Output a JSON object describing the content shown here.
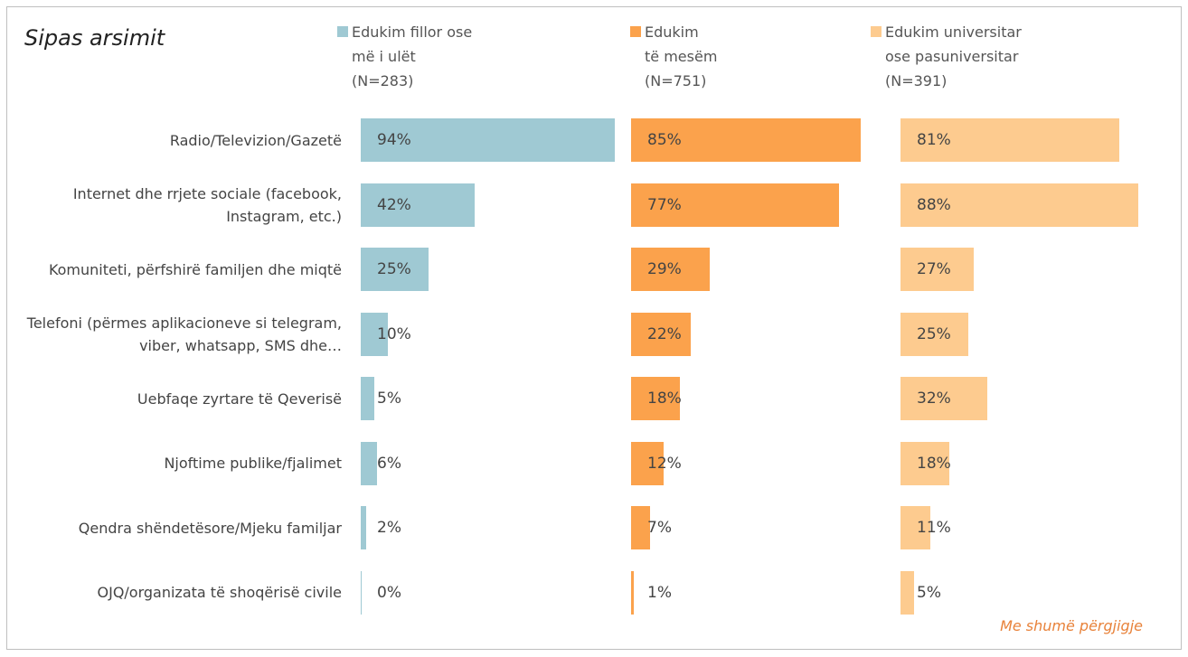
{
  "chart_data": {
    "type": "bar",
    "orientation": "horizontal",
    "title": "Sipas arsimit",
    "note": "Me shumë përgjigje",
    "xlim": [
      0,
      100
    ],
    "categories": [
      "Radio/Televizion/Gazetë",
      "Internet dhe rrjete sociale (facebook, Instagram, etc.)",
      "Komuniteti, përfshirë familjen dhe miqtë",
      "Telefoni (përmes aplikacioneve si telegram, viber, whatsapp, SMS dhe…",
      "Uebfaqe zyrtare të Qeverisë",
      "Njoftime publike/fjalimet",
      "Qendra shëndetësore/Mjeku familjar",
      "OJQ/organizata të shoqërisë civile"
    ],
    "series": [
      {
        "name": "Edukim fillor ose\nmë i ulët\n(N=283)",
        "color": "#9fc9d3",
        "values": [
          94,
          42,
          25,
          10,
          5,
          6,
          2,
          0
        ],
        "value_labels": [
          "94%",
          "42%",
          "25%",
          "10%",
          "5%",
          "6%",
          "2%",
          "0%"
        ]
      },
      {
        "name": "Edukim\ntë mesëm\n(N=751)",
        "color": "#fba24c",
        "values": [
          85,
          77,
          29,
          22,
          18,
          12,
          7,
          1
        ],
        "value_labels": [
          "85%",
          "77%",
          "29%",
          "22%",
          "18%",
          "12%",
          "7%",
          "1%"
        ]
      },
      {
        "name": "Edukim universitar\nose pasuniversitar\n(N=391)",
        "color": "#fdcb8f",
        "values": [
          81,
          88,
          27,
          25,
          32,
          18,
          11,
          5
        ],
        "value_labels": [
          "81%",
          "88%",
          "27%",
          "25%",
          "32%",
          "18%",
          "11%",
          "5%"
        ]
      }
    ]
  }
}
